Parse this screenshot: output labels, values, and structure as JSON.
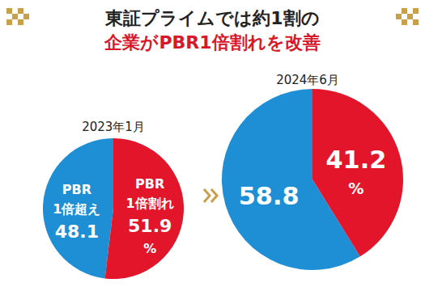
{
  "title": [
    "東証プライムでは約1割の",
    "企業がPBR1倍割れを改善"
  ],
  "chart_data": [
    {
      "type": "pie",
      "title": "2023年1月",
      "categories": [
        "PBR 1倍超え",
        "PBR 1倍割れ"
      ],
      "values": [
        48.1,
        51.9
      ],
      "value_labels": [
        "48.1",
        "51.9%"
      ],
      "colors": [
        "#1e8fd5",
        "#e3152b"
      ],
      "data_labels": true
    },
    {
      "type": "pie",
      "title": "2024年6月",
      "categories": [
        null,
        null
      ],
      "values": [
        58.8,
        41.2
      ],
      "value_labels": [
        "58.8",
        "41.2%"
      ],
      "colors": [
        "#1e8fd5",
        "#e3152b"
      ],
      "data_labels": true
    }
  ]
}
